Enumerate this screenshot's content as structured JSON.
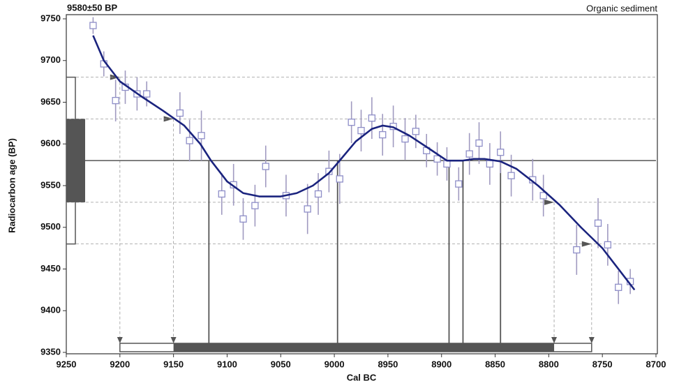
{
  "chart_data": {
    "type": "scatter",
    "title": "9580±50 BP",
    "subtitle": "Organic sediment",
    "y_label": "Radiocarbon age (BP)",
    "x_label": "Cal BC",
    "xlim": [
      9250,
      8700
    ],
    "ylim": [
      9350,
      9750
    ],
    "xticks": [
      9250,
      9200,
      9150,
      9100,
      9050,
      9000,
      8950,
      8900,
      8850,
      8800,
      8750,
      8700
    ],
    "yticks": [
      9350,
      9400,
      9450,
      9500,
      9550,
      9600,
      9650,
      9700,
      9750
    ],
    "measured_age": 9580,
    "sigma1": {
      "ylim": [
        9530,
        9630
      ],
      "range": [
        9150,
        8795
      ]
    },
    "sigma2": {
      "ylim": [
        9480,
        9680
      ],
      "range": [
        9200,
        8760
      ]
    },
    "intercepts": [
      9117,
      8997,
      8893,
      8880,
      8845
    ],
    "series": [
      {
        "color": "#8e8ec8",
        "x": [
          9225,
          9215,
          9204,
          9195,
          9184,
          9175,
          9144,
          9135,
          9124,
          9105,
          9094,
          9085,
          9074,
          9064,
          9045,
          9025,
          9015,
          9005,
          8995,
          8984,
          8975,
          8965,
          8955,
          8945,
          8934,
          8924,
          8914,
          8904,
          8895,
          8884,
          8874,
          8865,
          8855,
          8845,
          8835,
          8815,
          8805,
          8774,
          8754,
          8745,
          8735,
          8724
        ],
        "values": [
          9742,
          9696,
          9652,
          9668,
          9660,
          9660,
          9637,
          9604,
          9610,
          9540,
          9551,
          9510,
          9526,
          9573,
          9538,
          9522,
          9540,
          9567,
          9558,
          9626,
          9616,
          9631,
          9611,
          9621,
          9606,
          9615,
          9592,
          9582,
          9576,
          9552,
          9588,
          9601,
          9576,
          9590,
          9562,
          9557,
          9538,
          9473,
          9505,
          9479,
          9428,
          9435
        ],
        "errors": [
          10,
          15,
          25,
          20,
          20,
          15,
          25,
          25,
          30,
          25,
          25,
          25,
          25,
          25,
          25,
          30,
          25,
          25,
          30,
          25,
          25,
          25,
          25,
          25,
          25,
          20,
          20,
          20,
          20,
          20,
          25,
          25,
          25,
          25,
          25,
          25,
          25,
          30,
          30,
          25,
          20,
          15
        ]
      },
      {
        "color": "#1a237e",
        "x": [
          9225,
          9215,
          9200,
          9180,
          9160,
          9140,
          9125,
          9115,
          9100,
          9085,
          9070,
          9050,
          9035,
          9020,
          9005,
          8995,
          8980,
          8965,
          8955,
          8945,
          8930,
          8910,
          8895,
          8880,
          8870,
          8860,
          8845,
          8830,
          8810,
          8790,
          8770,
          8750,
          8735,
          8720
        ],
        "values": [
          9730,
          9700,
          9675,
          9657,
          9640,
          9622,
          9600,
          9580,
          9555,
          9541,
          9537,
          9537,
          9541,
          9550,
          9565,
          9580,
          9603,
          9618,
          9622,
          9620,
          9610,
          9593,
          9580,
          9580,
          9582,
          9582,
          9579,
          9570,
          9550,
          9527,
          9500,
          9475,
          9450,
          9425
        ]
      }
    ]
  }
}
